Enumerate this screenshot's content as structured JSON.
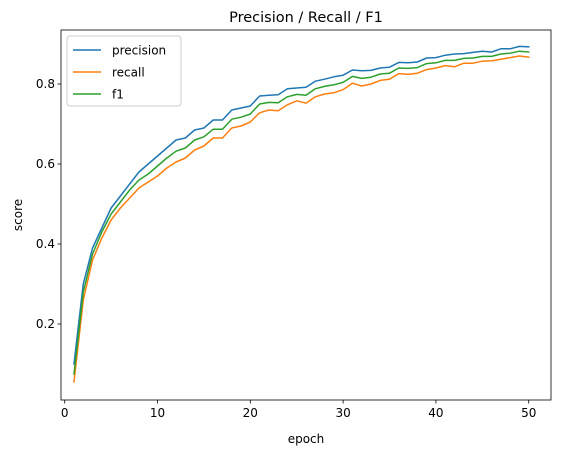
{
  "chart_data": {
    "type": "line",
    "title": "Precision / Recall / F1",
    "xlabel": "epoch",
    "ylabel": "score",
    "xlim": [
      -0.4,
      52.4
    ],
    "ylim": [
      0.01,
      0.935
    ],
    "xticks": [
      0,
      10,
      20,
      30,
      40,
      50
    ],
    "yticks": [
      0.2,
      0.4,
      0.6,
      0.8
    ],
    "ytick_labels": [
      "0.2",
      "0.4",
      "0.6",
      "0.8"
    ],
    "grid": false,
    "legend_position": "top-left",
    "x": [
      1,
      2,
      3,
      4,
      5,
      6,
      7,
      8,
      9,
      10,
      11,
      12,
      13,
      14,
      15,
      16,
      17,
      18,
      19,
      20,
      21,
      22,
      23,
      24,
      25,
      26,
      27,
      28,
      29,
      30,
      31,
      32,
      33,
      34,
      35,
      36,
      37,
      38,
      39,
      40,
      41,
      42,
      43,
      44,
      45,
      46,
      47,
      48,
      49,
      50
    ],
    "series": [
      {
        "name": "precision",
        "color": "#1f77b4",
        "values": [
          0.1,
          0.3,
          0.39,
          0.44,
          0.49,
          0.52,
          0.55,
          0.58,
          0.6,
          0.62,
          0.64,
          0.66,
          0.665,
          0.685,
          0.69,
          0.71,
          0.71,
          0.735,
          0.74,
          0.745,
          0.77,
          0.772,
          0.773,
          0.788,
          0.79,
          0.792,
          0.807,
          0.812,
          0.818,
          0.822,
          0.835,
          0.833,
          0.834,
          0.84,
          0.842,
          0.854,
          0.853,
          0.855,
          0.865,
          0.866,
          0.872,
          0.875,
          0.876,
          0.879,
          0.882,
          0.88,
          0.888,
          0.888,
          0.894,
          0.893
        ]
      },
      {
        "name": "recall",
        "color": "#ff7f0e",
        "values": [
          0.055,
          0.26,
          0.36,
          0.415,
          0.46,
          0.49,
          0.515,
          0.54,
          0.555,
          0.57,
          0.59,
          0.605,
          0.615,
          0.635,
          0.645,
          0.665,
          0.665,
          0.69,
          0.695,
          0.705,
          0.728,
          0.735,
          0.733,
          0.748,
          0.758,
          0.752,
          0.768,
          0.775,
          0.778,
          0.786,
          0.802,
          0.795,
          0.8,
          0.809,
          0.812,
          0.826,
          0.824,
          0.827,
          0.836,
          0.84,
          0.846,
          0.843,
          0.852,
          0.852,
          0.857,
          0.858,
          0.862,
          0.866,
          0.87,
          0.867
        ]
      },
      {
        "name": "f1",
        "color": "#2ca02c",
        "values": [
          0.075,
          0.28,
          0.375,
          0.43,
          0.475,
          0.505,
          0.535,
          0.56,
          0.575,
          0.595,
          0.615,
          0.632,
          0.64,
          0.66,
          0.668,
          0.687,
          0.687,
          0.712,
          0.717,
          0.725,
          0.75,
          0.754,
          0.753,
          0.768,
          0.774,
          0.772,
          0.788,
          0.794,
          0.798,
          0.804,
          0.819,
          0.814,
          0.817,
          0.825,
          0.827,
          0.84,
          0.839,
          0.841,
          0.851,
          0.853,
          0.859,
          0.859,
          0.864,
          0.865,
          0.869,
          0.869,
          0.875,
          0.877,
          0.882,
          0.88
        ]
      }
    ]
  }
}
